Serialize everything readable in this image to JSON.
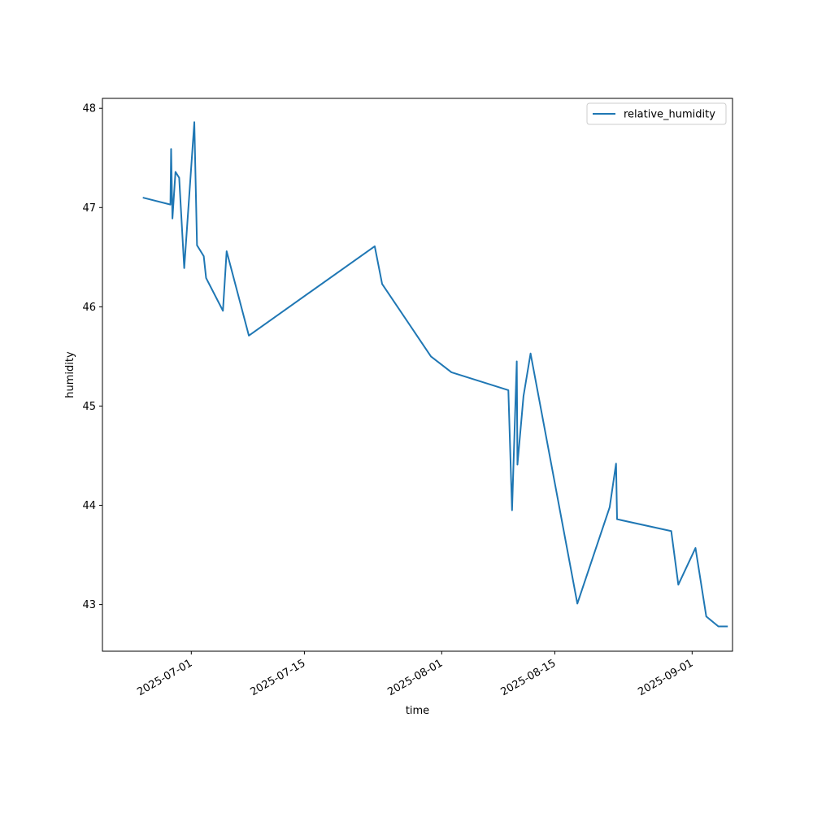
{
  "chart_data": {
    "type": "line",
    "xlabel": "time",
    "ylabel": "humidity",
    "x_axis_type": "date",
    "xlim": [
      "2025-06-20",
      "2025-09-06"
    ],
    "ylim": [
      42.53,
      48.1
    ],
    "x_ticks": [
      "2025-07-01",
      "2025-07-15",
      "2025-08-01",
      "2025-08-15",
      "2025-09-01"
    ],
    "y_ticks": [
      43,
      44,
      45,
      46,
      47,
      48
    ],
    "grid": false,
    "legend_position": "top-right",
    "colors": {
      "line": "#1f77b4",
      "frame": "#000000"
    },
    "series": [
      {
        "name": "relative_humidity",
        "x": [
          "2025-06-25T00:00",
          "2025-06-28T10:00",
          "2025-06-28T12:00",
          "2025-06-28T16:00",
          "2025-06-29T01:00",
          "2025-06-29T12:00",
          "2025-06-30T03:00",
          "2025-07-01T09:00",
          "2025-07-01T17:00",
          "2025-07-02T13:00",
          "2025-07-02T20:00",
          "2025-07-04T22:00",
          "2025-07-05T09:00",
          "2025-07-08T03:00",
          "2025-07-23T17:00",
          "2025-07-24T15:00",
          "2025-07-30T16:00",
          "2025-08-02T05:00",
          "2025-08-09T06:00",
          "2025-08-09T17:00",
          "2025-08-10T07:00",
          "2025-08-10T09:00",
          "2025-08-11T03:00",
          "2025-08-12T00:00",
          "2025-08-17T19:00",
          "2025-08-21T19:00",
          "2025-08-22T14:00",
          "2025-08-22T17:00",
          "2025-08-29T10:00",
          "2025-08-30T07:00",
          "2025-09-01T10:00",
          "2025-09-02T18:00",
          "2025-09-04T06:00",
          "2025-09-05T10:00"
        ],
        "values": [
          47.1,
          47.03,
          47.59,
          46.89,
          47.36,
          47.3,
          46.39,
          47.86,
          46.62,
          46.51,
          46.29,
          45.96,
          46.56,
          45.71,
          46.61,
          46.23,
          45.5,
          45.34,
          45.16,
          43.95,
          45.45,
          44.41,
          45.1,
          45.53,
          43.01,
          43.98,
          44.42,
          43.86,
          43.74,
          43.2,
          43.57,
          42.88,
          42.78,
          42.78
        ]
      }
    ]
  }
}
